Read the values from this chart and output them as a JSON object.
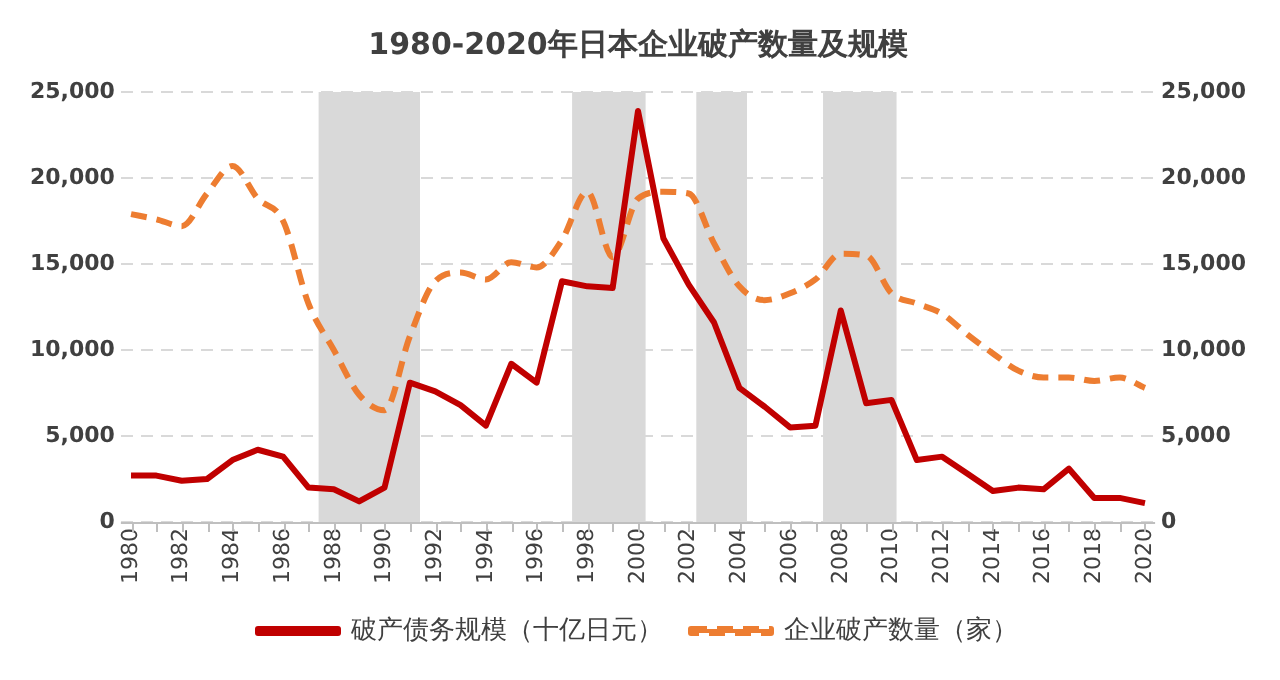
{
  "chart_data": {
    "type": "line",
    "title": "1980-2020年日本企业破产数量及规模",
    "x": [
      1980,
      1981,
      1982,
      1983,
      1984,
      1985,
      1986,
      1987,
      1988,
      1989,
      1990,
      1991,
      1992,
      1993,
      1994,
      1995,
      1996,
      1997,
      1998,
      1999,
      2000,
      2001,
      2002,
      2003,
      2004,
      2005,
      2006,
      2007,
      2008,
      2009,
      2010,
      2011,
      2012,
      2013,
      2014,
      2015,
      2016,
      2017,
      2018,
      2019,
      2020
    ],
    "series": [
      {
        "name": "破产债务规模（十亿日元）",
        "color": "#c00000",
        "line_style": "solid",
        "values": [
          2700,
          2700,
          2400,
          2500,
          3600,
          4200,
          3800,
          2000,
          1900,
          1200,
          2000,
          8100,
          7600,
          6800,
          5600,
          9200,
          8100,
          14000,
          13700,
          13600,
          23900,
          16500,
          13800,
          11600,
          7800,
          6700,
          5500,
          5600,
          12300,
          6900,
          7100,
          3600,
          3800,
          2800,
          1800,
          2000,
          1900,
          3100,
          1400,
          1400,
          1100
        ]
      },
      {
        "name": "企业破产数量（家）",
        "color": "#ed7d31",
        "line_style": "dashed",
        "axis": "y2",
        "values": [
          17900,
          17600,
          17200,
          19100,
          20700,
          18800,
          17500,
          12700,
          10000,
          7400,
          6500,
          10800,
          14000,
          14500,
          14100,
          15100,
          14800,
          16400,
          19200,
          15400,
          18800,
          19200,
          19100,
          16200,
          13700,
          12900,
          13300,
          14100,
          15600,
          15500,
          13300,
          12700,
          12100,
          10900,
          9800,
          8800,
          8400,
          8400,
          8200,
          8400,
          7800
        ]
      }
    ],
    "xlim": [
      1979.6,
      2020.4
    ],
    "xticks": [
      1980,
      1982,
      1984,
      1986,
      1988,
      1990,
      1992,
      1994,
      1996,
      1998,
      2000,
      2002,
      2004,
      2006,
      2008,
      2010,
      2012,
      2014,
      2016,
      2018,
      2020
    ],
    "ylim": [
      0,
      25000
    ],
    "yticks": [
      0,
      {
        "value": 5000,
        "label": "5,000"
      },
      {
        "value": 10000,
        "label": "10,000"
      },
      {
        "value": 15000,
        "label": "15,000"
      },
      {
        "value": 20000,
        "label": "20,000"
      },
      {
        "value": 25000,
        "label": "25,000"
      }
    ],
    "y2lim": [
      0,
      25000
    ],
    "y2ticks": [
      0,
      {
        "value": 5000,
        "label": "5,000"
      },
      {
        "value": 10000,
        "label": "10,000"
      },
      {
        "value": 15000,
        "label": "15,000"
      },
      {
        "value": 20000,
        "label": "20,000"
      },
      {
        "value": 25000,
        "label": "25,000"
      }
    ],
    "bands": [
      {
        "axis": "x",
        "from": 1987.4,
        "to": 1991.4,
        "color": "#d9d9d9"
      },
      {
        "axis": "x",
        "from": 1997.4,
        "to": 2000.3,
        "color": "#d9d9d9"
      },
      {
        "axis": "x",
        "from": 2002.3,
        "to": 2004.3,
        "color": "#d9d9d9"
      },
      {
        "axis": "x",
        "from": 2007.3,
        "to": 2010.2,
        "color": "#d9d9d9"
      }
    ],
    "grid": "y",
    "legend": "bottom",
    "marker": "none"
  }
}
